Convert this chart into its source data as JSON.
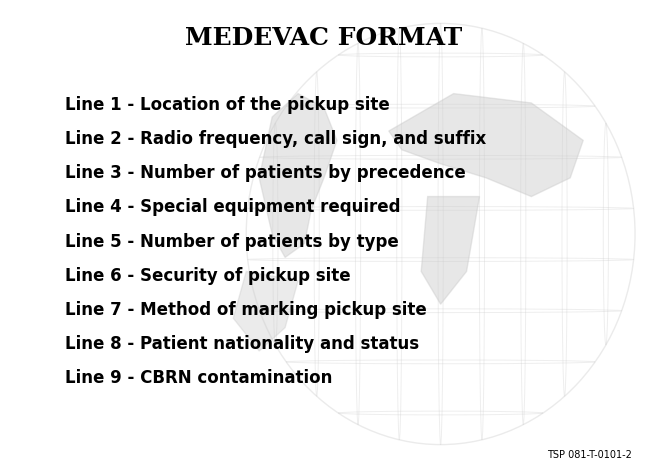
{
  "title": "MEDEVAC FORMAT",
  "lines": [
    "Line 1 - Location of the pickup site",
    "Line 2 - Radio frequency, call sign, and suffix",
    "Line 3 - Number of patients by precedence",
    "Line 4 - Special equipment required",
    "Line 5 - Number of patients by type",
    "Line 6 - Security of pickup site",
    "Line 7 - Method of marking pickup site",
    "Line 8 - Patient nationality and status",
    "Line 9 - CBRN contamination"
  ],
  "footnote": "TSP 081-T-0101-2",
  "bg_color": "#ffffff",
  "text_color": "#000000",
  "title_fontsize": 18,
  "line_fontsize": 12,
  "footnote_fontsize": 7,
  "watermark_alpha": 0.12
}
